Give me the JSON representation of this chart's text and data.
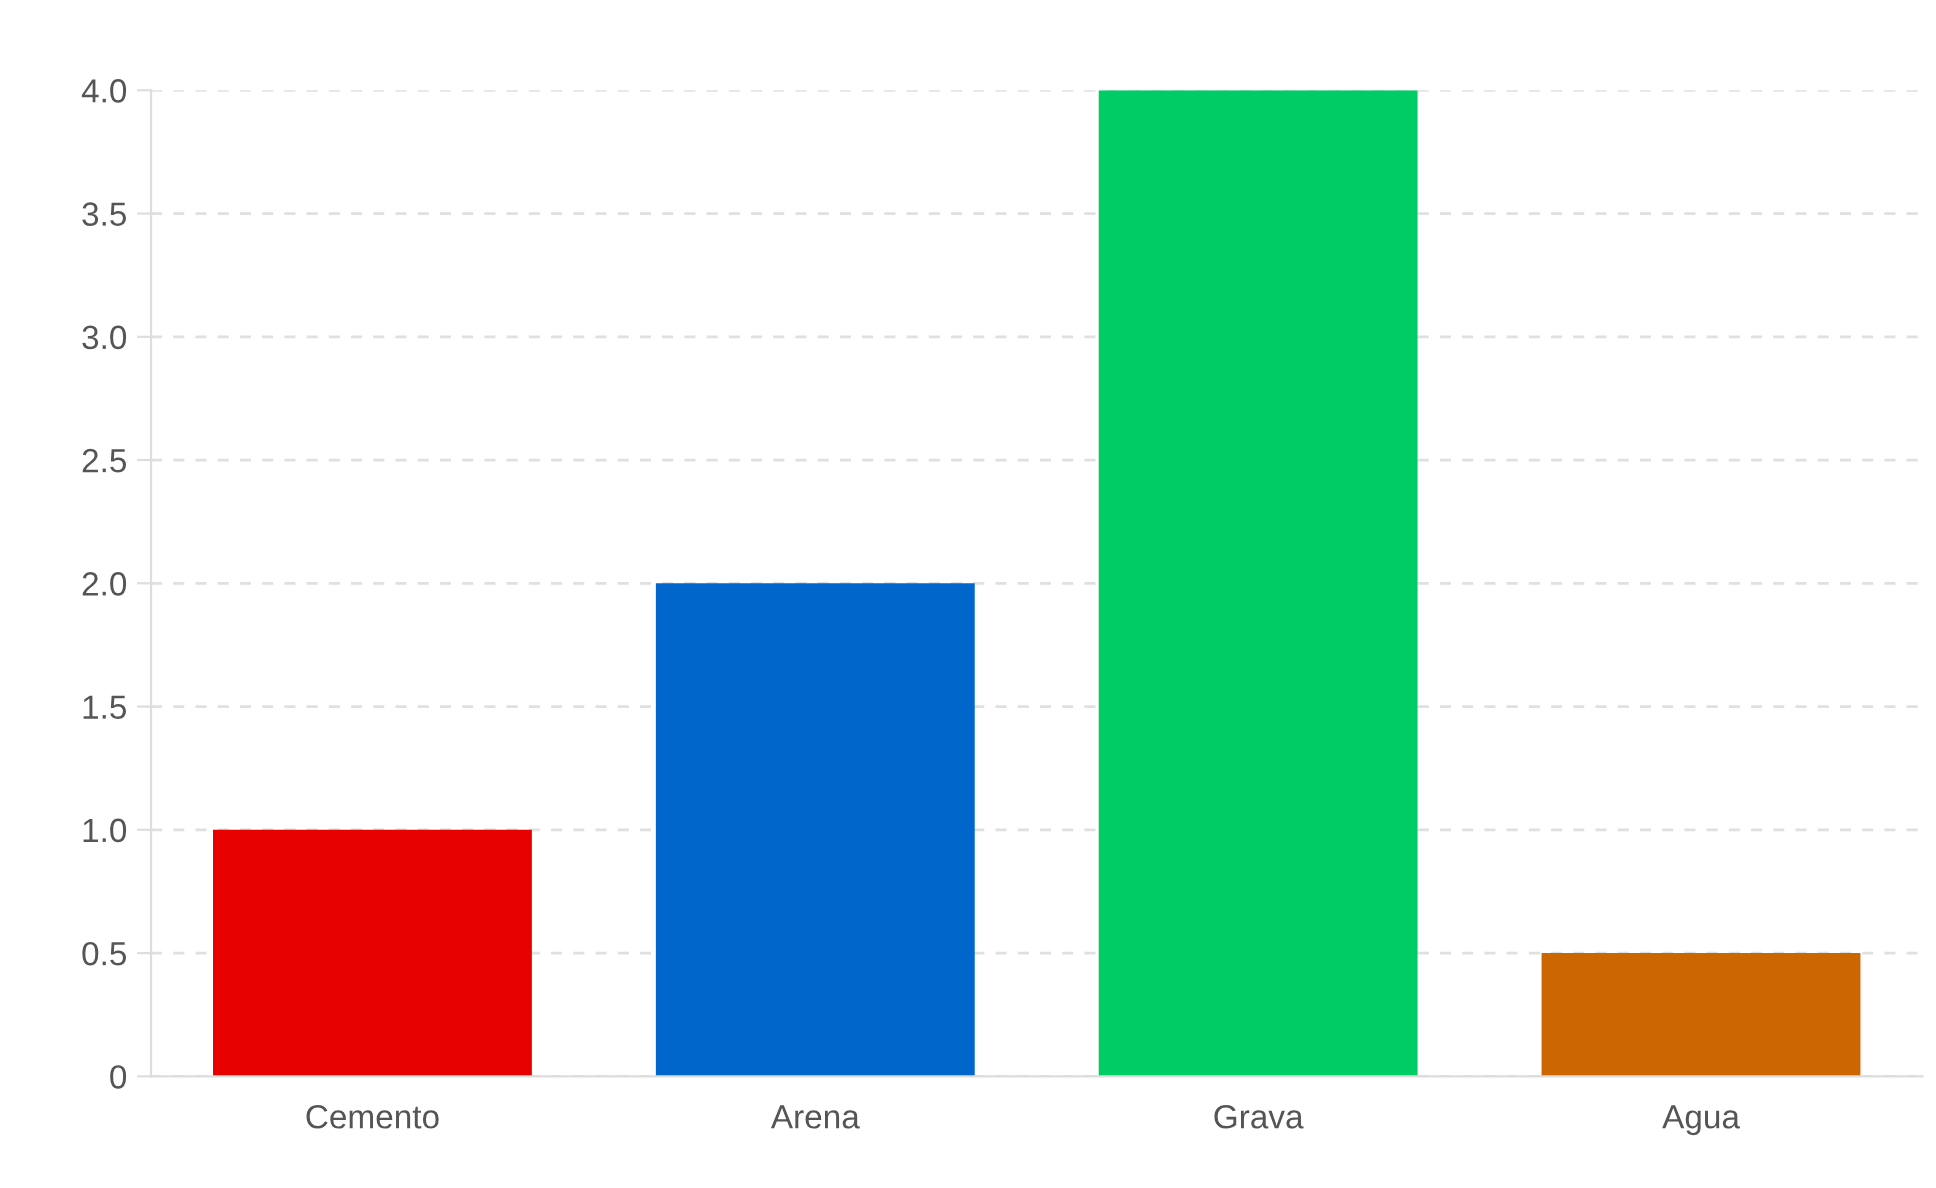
{
  "chart_data": {
    "type": "bar",
    "categories": [
      "Cemento",
      "Arena",
      "Grava",
      "Agua"
    ],
    "values": [
      1.0,
      2.0,
      4.0,
      0.5
    ],
    "colors": [
      "#e60000",
      "#0066cc",
      "#00cc66",
      "#cc6600"
    ],
    "ylim": [
      0,
      4.0
    ],
    "yticks": [
      0,
      0.5,
      {
        "value": 1.0,
        "label": "1.0"
      },
      1.5,
      {
        "value": 2.0,
        "label": "2.0"
      },
      2.5,
      {
        "value": 3.0,
        "label": "3.0"
      },
      3.5,
      {
        "value": 4.0,
        "label": "4.0"
      }
    ],
    "grid": "y",
    "legend": false
  }
}
